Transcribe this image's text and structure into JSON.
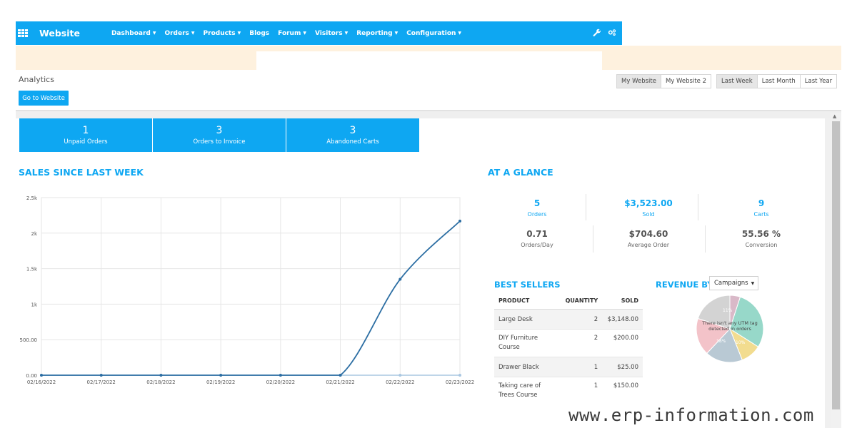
{
  "navbar": {
    "brand": "Website",
    "menu": [
      "Dashboard",
      "Orders",
      "Products",
      "Blogs",
      "Forum",
      "Visitors",
      "Reporting",
      "Configuration"
    ],
    "menu_has_caret": [
      true,
      true,
      true,
      false,
      true,
      true,
      true,
      true
    ]
  },
  "header": {
    "title": "Analytics",
    "go_button": "Go to Website",
    "websites": [
      "My Website",
      "My Website 2"
    ],
    "periods": [
      "Last Week",
      "Last Month",
      "Last Year"
    ]
  },
  "stats": [
    {
      "value": "1",
      "label": "Unpaid Orders"
    },
    {
      "value": "3",
      "label": "Orders to Invoice"
    },
    {
      "value": "3",
      "label": "Abandoned Carts"
    }
  ],
  "sales": {
    "title": "SALES SINCE LAST WEEK"
  },
  "chart_data": {
    "type": "line",
    "x": [
      "02/16/2022",
      "02/17/2022",
      "02/18/2022",
      "02/19/2022",
      "02/20/2022",
      "02/21/2022",
      "02/22/2022",
      "02/23/2022"
    ],
    "series": [
      {
        "values": [
          0,
          0,
          0,
          0,
          0,
          0,
          1350,
          2170
        ],
        "color": "#2c6ea3"
      },
      {
        "values": [
          0,
          0,
          0,
          0,
          0,
          0,
          0,
          0
        ],
        "color": "#a9c7e1"
      }
    ],
    "yticks": [
      "0.00",
      "500.00",
      "1k",
      "1.5k",
      "2k",
      "2.5k"
    ],
    "ylim": [
      0,
      2500
    ],
    "grid": true
  },
  "glance": {
    "title": "AT A GLANCE",
    "row1": [
      {
        "value": "5",
        "label": "Orders"
      },
      {
        "value": "$3,523.00",
        "label": "Sold"
      },
      {
        "value": "9",
        "label": "Carts"
      }
    ],
    "row2": [
      {
        "value": "0.71",
        "label": "Orders/Day"
      },
      {
        "value": "$704.60",
        "label": "Average Order"
      },
      {
        "value": "55.56 %",
        "label": "Conversion"
      }
    ]
  },
  "best_sellers": {
    "title": "BEST SELLERS",
    "columns": [
      "PRODUCT",
      "QUANTITY",
      "SOLD"
    ],
    "rows": [
      {
        "product": "Large Desk",
        "quantity": "2",
        "sold": "$3,148.00"
      },
      {
        "product": "DIY Furniture Course",
        "quantity": "2",
        "sold": "$200.00"
      },
      {
        "product": "Drawer Black",
        "quantity": "1",
        "sold": "$25.00"
      },
      {
        "product": "Taking care of Trees Course",
        "quantity": "1",
        "sold": "$150.00"
      }
    ]
  },
  "revenue": {
    "title": "REVENUE BY",
    "dropdown": "Campaigns",
    "pie_message": "There isn't any UTM tag detected in orders",
    "pie_labels": [
      "11%",
      "18%",
      "10%"
    ],
    "pie_colors": [
      "#d9b9c8",
      "#97d8c9",
      "#f2dc8f",
      "#b9c9d4",
      "#f3c3c9",
      "#d3d3d3"
    ]
  },
  "watermark": "www.erp-information.com"
}
